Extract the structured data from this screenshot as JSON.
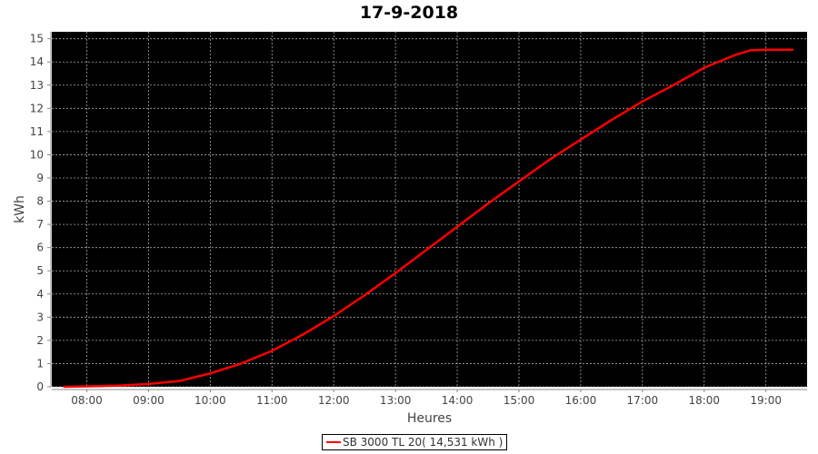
{
  "chart_data": {
    "type": "line",
    "title": "17-9-2018",
    "xlabel": "Heures",
    "ylabel": "kWh",
    "xlim": [
      "07:26",
      "19:40"
    ],
    "ylim": [
      0,
      15.3
    ],
    "x_ticks": [
      "08:00",
      "09:00",
      "10:00",
      "11:00",
      "12:00",
      "13:00",
      "14:00",
      "15:00",
      "16:00",
      "17:00",
      "18:00",
      "19:00"
    ],
    "y_ticks": [
      0,
      1,
      2,
      3,
      4,
      5,
      6,
      7,
      8,
      9,
      10,
      11,
      12,
      13,
      14,
      15
    ],
    "grid": true,
    "background": "#000000",
    "legend_position": "bottom",
    "series": [
      {
        "name": "SB 3000 TL 20( 14,531 kWh )",
        "color": "#ff0000",
        "x": [
          "07:38",
          "08:00",
          "08:30",
          "09:00",
          "09:30",
          "10:00",
          "10:30",
          "11:00",
          "11:30",
          "12:00",
          "12:30",
          "13:00",
          "13:30",
          "14:00",
          "14:30",
          "15:00",
          "15:30",
          "16:00",
          "16:30",
          "17:00",
          "17:30",
          "18:00",
          "18:30",
          "18:45",
          "19:00",
          "19:26"
        ],
        "y": [
          0,
          0.02,
          0.05,
          0.12,
          0.25,
          0.58,
          1.0,
          1.55,
          2.25,
          3.05,
          3.95,
          4.9,
          5.9,
          6.9,
          7.9,
          8.85,
          9.8,
          10.65,
          11.5,
          12.3,
          13.0,
          13.75,
          14.3,
          14.5,
          14.53,
          14.53
        ]
      }
    ]
  }
}
